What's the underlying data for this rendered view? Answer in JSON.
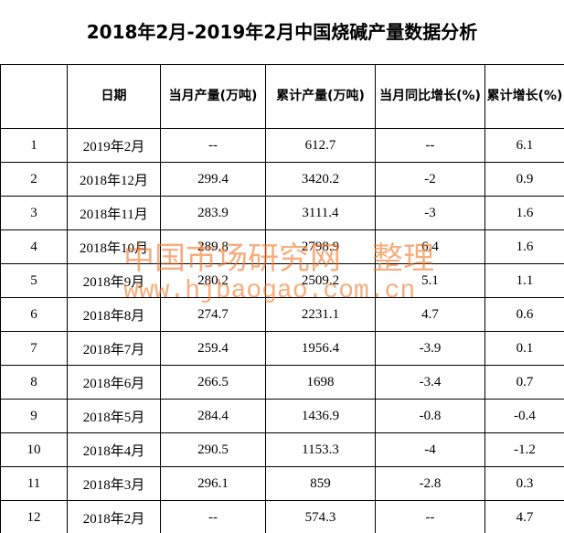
{
  "title": "2018年2月-2019年2月中国烧碱产量数据分析",
  "table": {
    "header": [
      "日期",
      "当月产量(万吨)",
      "累计产量(万吨)",
      "当月同比增长(%)",
      "累计增长(%)"
    ],
    "rows": [
      [
        1,
        "2019年2月",
        "--",
        612.7,
        "--",
        6.1
      ],
      [
        2,
        "2018年12月",
        299.4,
        3420.2,
        -2,
        0.9
      ],
      [
        3,
        "2018年11月",
        283.9,
        3111.4,
        -3,
        1.6
      ],
      [
        4,
        "2018年10月",
        289.8,
        2798.9,
        6.4,
        1.6
      ],
      [
        5,
        "2018年9月",
        280.2,
        2509.2,
        5.1,
        1.1
      ],
      [
        6,
        "2018年8月",
        274.7,
        2231.1,
        4.7,
        0.6
      ],
      [
        7,
        "2018年7月",
        259.4,
        1956.4,
        -3.9,
        0.1
      ],
      [
        8,
        "2018年6月",
        266.5,
        1698,
        -3.4,
        0.7
      ],
      [
        9,
        "2018年5月",
        284.4,
        1436.9,
        -0.8,
        -0.4
      ],
      [
        10,
        "2018年4月",
        290.5,
        1153.3,
        -4,
        -1.2
      ],
      [
        11,
        "2018年3月",
        296.1,
        859,
        -2.8,
        0.3
      ],
      [
        12,
        "2018年2月",
        "--",
        574.3,
        "--",
        4.7
      ]
    ]
  },
  "watermark": {
    "line1": "中国市场研究网　整理",
    "line2": "www.hjbaogao.com.cn"
  }
}
